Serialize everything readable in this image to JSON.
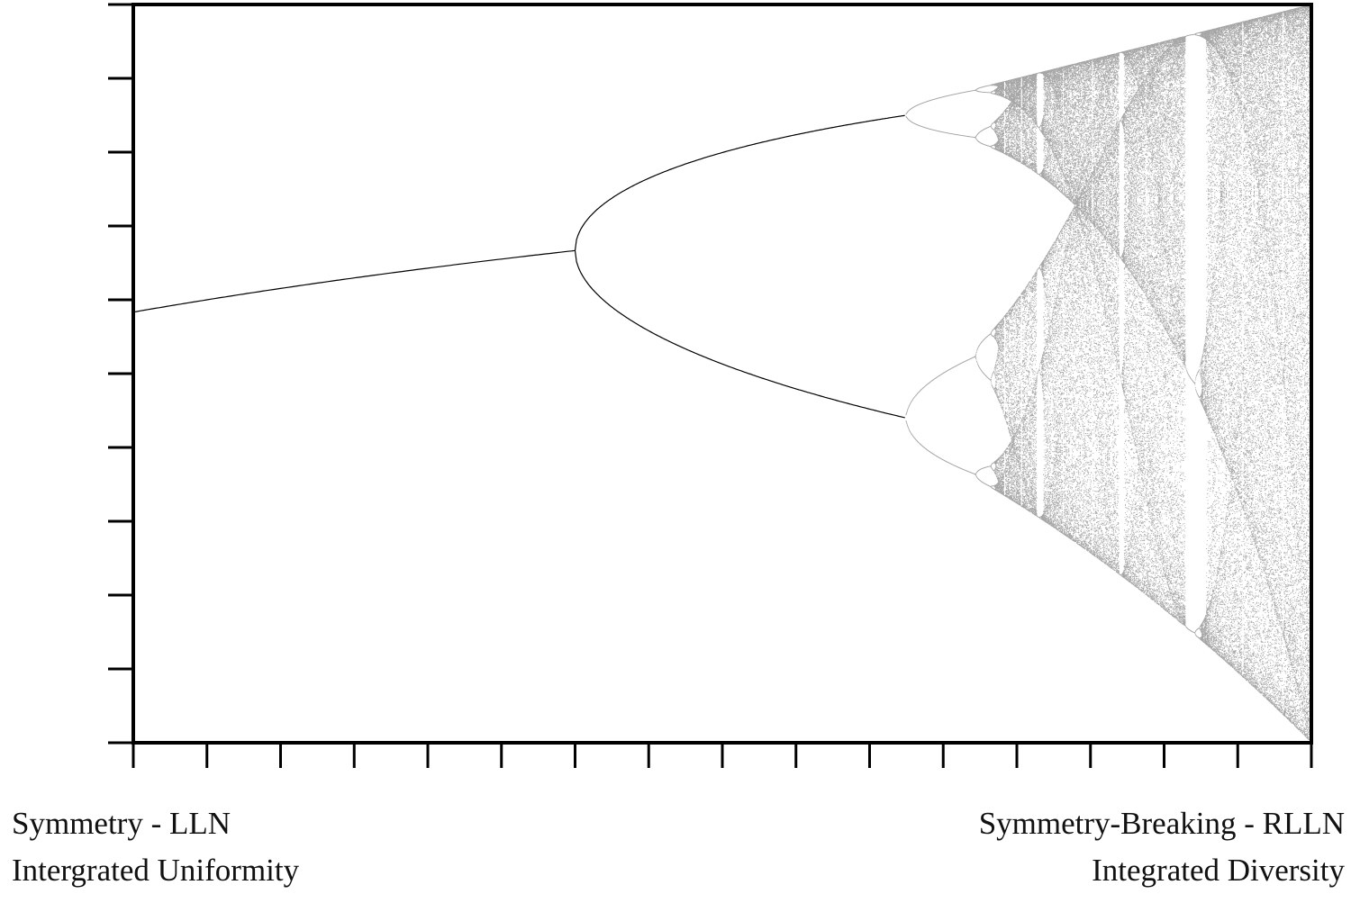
{
  "diagram": {
    "type": "logistic-map bifurcation diagram",
    "axis_color": "#000000",
    "ink_color": "#000000",
    "background": "#ffffff",
    "x_ticks": 17,
    "y_ticks": 11,
    "tick_labels_shown": false
  },
  "labels": {
    "left_line1": "Symmetry - LLN",
    "left_line2": "Intergrated Uniformity",
    "right_line1": "Symmetry-Breaking - RLLN",
    "right_line2": "Integrated Diversity"
  }
}
